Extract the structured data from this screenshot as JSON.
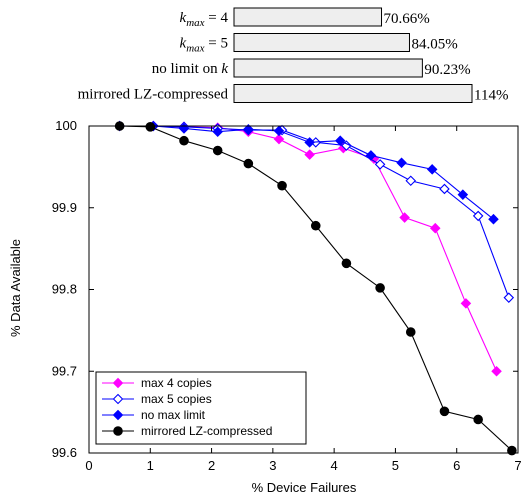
{
  "bar_summary": {
    "rows": [
      {
        "label": "k_max = 4",
        "value": 70.66,
        "value_label": "70.66%"
      },
      {
        "label": "k_max = 5",
        "value": 84.05,
        "value_label": "84.05%"
      },
      {
        "label": "no limit on k",
        "value": 90.23,
        "value_label": "90.23%"
      },
      {
        "label": "mirrored LZ-compressed",
        "value": 114,
        "value_label": "114%"
      }
    ]
  },
  "chart_data": {
    "type": "line",
    "title": "",
    "xlabel": "% Device Failures",
    "ylabel": "% Data Available",
    "xlim": [
      0,
      7
    ],
    "ylim": [
      99.6,
      100
    ],
    "x_ticks": [
      "0",
      "1",
      "2",
      "3",
      "4",
      "5",
      "6",
      "7"
    ],
    "y_ticks": [
      "100",
      "99.9",
      "99.8",
      "99.7",
      "99.6"
    ],
    "legend_position": "bottom-left",
    "series": [
      {
        "name": "max 4 copies",
        "color": "#ff00ff",
        "marker": "diamond-filled",
        "x": [
          0.5,
          1.05,
          1.55,
          2.1,
          2.6,
          3.1,
          3.6,
          4.15,
          4.65,
          5.15,
          5.65,
          6.15,
          6.65
        ],
        "y": [
          100.0,
          100.0,
          99.999,
          99.998,
          99.993,
          99.984,
          99.965,
          99.973,
          99.96,
          99.888,
          99.875,
          99.783,
          99.7
        ]
      },
      {
        "name": "max 5 copies",
        "color": "#0000ff",
        "marker": "diamond-open",
        "x": [
          0.5,
          1.05,
          1.55,
          2.1,
          2.6,
          3.15,
          3.7,
          4.2,
          4.75,
          5.25,
          5.8,
          6.35,
          6.85
        ],
        "y": [
          100.0,
          100.0,
          99.999,
          99.997,
          99.995,
          99.995,
          99.98,
          99.976,
          99.953,
          99.933,
          99.923,
          99.89,
          99.79
        ]
      },
      {
        "name": "no max limit",
        "color": "#0000ff",
        "marker": "diamond-filled",
        "x": [
          0.5,
          1.05,
          1.55,
          2.1,
          2.6,
          3.1,
          3.6,
          4.1,
          4.6,
          5.1,
          5.6,
          6.1,
          6.6
        ],
        "y": [
          100.0,
          100.0,
          99.997,
          99.993,
          99.996,
          99.994,
          99.98,
          99.982,
          99.964,
          99.955,
          99.947,
          99.916,
          99.886
        ]
      },
      {
        "name": "mirrored LZ-compressed",
        "color": "#000000",
        "marker": "circle-filled",
        "x": [
          0.5,
          1.0,
          1.55,
          2.1,
          2.6,
          3.15,
          3.7,
          4.2,
          4.75,
          5.25,
          5.8,
          6.35,
          6.9
        ],
        "y": [
          100.0,
          99.999,
          99.982,
          99.97,
          99.954,
          99.927,
          99.878,
          99.832,
          99.802,
          99.748,
          99.651,
          99.641,
          99.603
        ]
      }
    ]
  }
}
